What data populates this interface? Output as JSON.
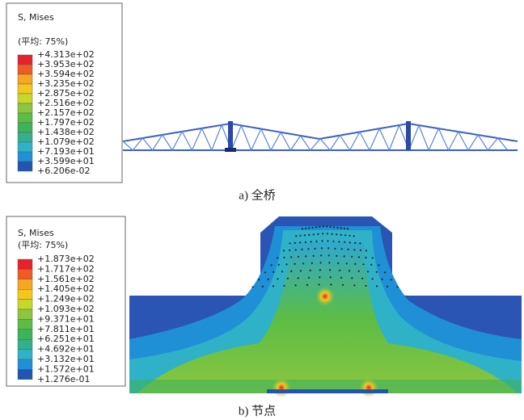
{
  "panels": [
    {
      "legend": {
        "title": "S, Mises",
        "subtitle": "(平均: 75%)",
        "labels": [
          "+4.313e+02",
          "+3.953e+02",
          "+3.594e+02",
          "+3.235e+02",
          "+2.875e+02",
          "+2.516e+02",
          "+2.157e+02",
          "+1.797e+02",
          "+1.438e+02",
          "+1.079e+02",
          "+7.193e+01",
          "+3.599e+01",
          "+6.206e-02"
        ],
        "colors": [
          "#e8222a",
          "#f05a24",
          "#f5a623",
          "#f5c61e",
          "#c6d82a",
          "#8cc63f",
          "#5bbd45",
          "#3db35a",
          "#34b08a",
          "#2fb2c8",
          "#1f8fd6",
          "#2255b0"
        ]
      },
      "caption": "a)  全桥"
    },
    {
      "legend": {
        "title": "S, Mises",
        "subtitle": "(平均: 75%)",
        "labels": [
          "+1.873e+02",
          "+1.717e+02",
          "+1.561e+02",
          "+1.405e+02",
          "+1.249e+02",
          "+1.093e+02",
          "+9.371e+01",
          "+7.811e+01",
          "+6.251e+01",
          "+4.692e+01",
          "+3.132e+01",
          "+1.572e+01",
          "+1.276e-01"
        ],
        "colors": [
          "#e8222a",
          "#f05a24",
          "#f5a623",
          "#f5c61e",
          "#c6d82a",
          "#8cc63f",
          "#5bbd45",
          "#3db35a",
          "#34b08a",
          "#2fb2c8",
          "#1f8fd6",
          "#2255b0"
        ]
      },
      "caption": "b)  节点"
    }
  ]
}
